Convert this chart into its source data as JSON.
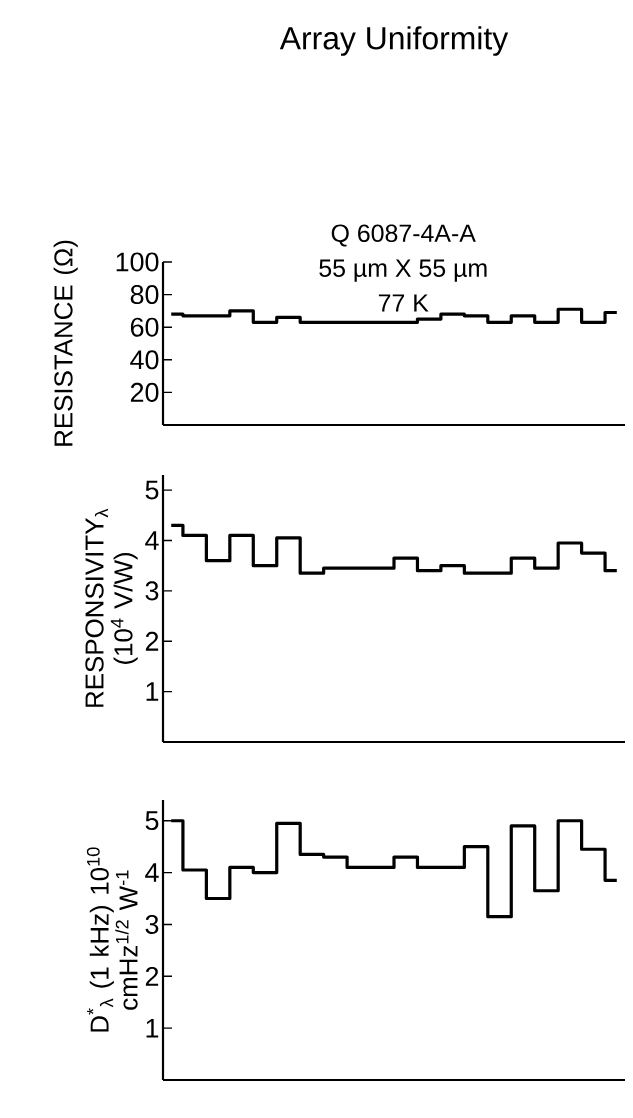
{
  "chart_data": [
    {
      "type": "step",
      "title": "Array Uniformity",
      "ylabel": "RESISTANCE (Ω)",
      "annotations": [
        "Q 6087-4A-A",
        "55 µm X 55 µm",
        "77  K"
      ],
      "color": "#000000",
      "categories": [
        null,
        null,
        null,
        null,
        null,
        null,
        null,
        null,
        null,
        null,
        null,
        null,
        null,
        null,
        null,
        null,
        null,
        null,
        null,
        null
      ],
      "values": [
        68,
        67,
        67,
        70,
        63,
        66,
        63,
        63,
        63,
        63,
        63,
        65,
        68,
        67,
        63,
        67,
        63,
        71,
        63,
        69
      ],
      "ylim": [
        0,
        100
      ],
      "yticks": [
        20,
        40,
        60,
        80,
        100
      ]
    },
    {
      "type": "step",
      "ylabel": "RESPONSIVITY$_{λ}$ (10$^{4}$ V/W)",
      "color": "#000000",
      "categories": [
        null,
        null,
        null,
        null,
        null,
        null,
        null,
        null,
        null,
        null,
        null,
        null,
        null,
        null,
        null,
        null,
        null,
        null,
        null,
        null
      ],
      "values": [
        4.3,
        4.1,
        3.6,
        4.1,
        3.5,
        4.05,
        3.35,
        3.45,
        3.45,
        3.45,
        3.65,
        3.4,
        3.5,
        3.35,
        3.35,
        3.65,
        3.45,
        3.95,
        3.75,
        3.4
      ],
      "ylim": [
        0,
        5.3
      ],
      "yticks": [
        1,
        2,
        3,
        4,
        5
      ]
    },
    {
      "type": "step",
      "ylabel": "D$^{*}$$_{λ}$ (1 kHz) 10$^{10}$ cmHz$^{1/2}$ W$^{-1}$",
      "color": "#000000",
      "categories": [
        null,
        null,
        null,
        null,
        null,
        null,
        null,
        null,
        null,
        null,
        null,
        null,
        null,
        null,
        null,
        null,
        null,
        null,
        null,
        null
      ],
      "values": [
        5.0,
        4.05,
        3.5,
        4.1,
        4.0,
        4.95,
        4.35,
        4.3,
        4.1,
        4.1,
        4.3,
        4.1,
        4.1,
        4.5,
        3.15,
        4.9,
        3.65,
        5.0,
        4.45,
        3.85
      ],
      "ylim": [
        0,
        5.4
      ],
      "yticks": [
        1,
        2,
        3,
        4,
        5
      ]
    }
  ]
}
